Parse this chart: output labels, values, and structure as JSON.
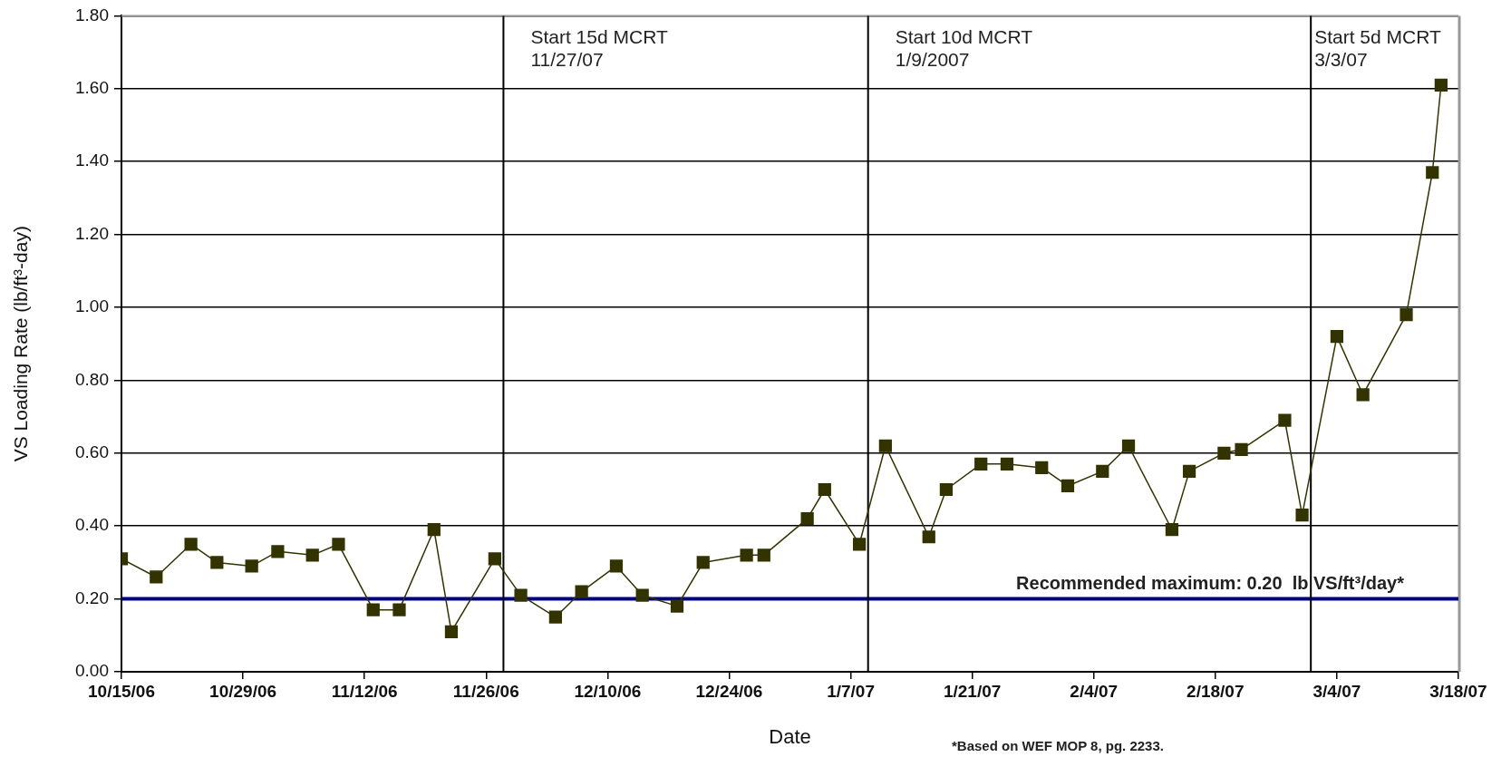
{
  "chart_data": {
    "type": "line",
    "xlabel": "Date",
    "ylabel": "VS Loading Rate (lb/ft³-day)",
    "series": [
      {
        "color": "#333300",
        "x": [
          "2006-10-15",
          "2006-10-19",
          "2006-10-23",
          "2006-10-26",
          "2006-10-30",
          "2006-11-02",
          "2006-11-06",
          "2006-11-09",
          "2006-11-13",
          "2006-11-16",
          "2006-11-20",
          "2006-11-22",
          "2006-11-27",
          "2006-11-30",
          "2006-12-04",
          "2006-12-07",
          "2006-12-11",
          "2006-12-14",
          "2006-12-18",
          "2006-12-21",
          "2006-12-26",
          "2006-12-28",
          "2007-01-02",
          "2007-01-04",
          "2007-01-08",
          "2007-01-11",
          "2007-01-16",
          "2007-01-18",
          "2007-01-22",
          "2007-01-25",
          "2007-01-29",
          "2007-02-01",
          "2007-02-05",
          "2007-02-08",
          "2007-02-13",
          "2007-02-15",
          "2007-02-19",
          "2007-02-21",
          "2007-02-26",
          "2007-02-28",
          "2007-03-04",
          "2007-03-07",
          "2007-03-12",
          "2007-03-15",
          "2007-03-16"
        ],
        "values": [
          0.31,
          0.26,
          0.35,
          0.3,
          0.29,
          0.33,
          0.32,
          0.35,
          0.17,
          0.17,
          0.39,
          0.11,
          0.31,
          0.21,
          0.15,
          0.22,
          0.29,
          0.21,
          0.18,
          0.3,
          0.32,
          0.32,
          0.42,
          0.5,
          0.35,
          0.62,
          0.37,
          0.5,
          0.57,
          0.57,
          0.56,
          0.51,
          0.55,
          0.62,
          0.39,
          0.55,
          0.6,
          0.61,
          0.69,
          0.43,
          0.92,
          0.76,
          0.98,
          1.37,
          1.61
        ]
      }
    ],
    "xlim": [
      "2006-10-15",
      "2007-03-18"
    ],
    "xticks": [
      {
        "value": "2006-10-15",
        "label": "10/15/06"
      },
      {
        "value": "2006-10-29",
        "label": "10/29/06"
      },
      {
        "value": "2006-11-12",
        "label": "11/12/06"
      },
      {
        "value": "2006-11-26",
        "label": "11/26/06"
      },
      {
        "value": "2006-12-10",
        "label": "12/10/06"
      },
      {
        "value": "2006-12-24",
        "label": "12/24/06"
      },
      {
        "value": "2007-01-07",
        "label": "1/7/07"
      },
      {
        "value": "2007-01-21",
        "label": "1/21/07"
      },
      {
        "value": "2007-02-04",
        "label": "2/4/07"
      },
      {
        "value": "2007-02-18",
        "label": "2/18/07"
      },
      {
        "value": "2007-03-04",
        "label": "3/4/07"
      },
      {
        "value": "2007-03-18",
        "label": "3/18/07"
      }
    ],
    "ylim": [
      0,
      1.8
    ],
    "yticks": [
      {
        "value": 0,
        "label": "0.00"
      },
      {
        "value": 0.2,
        "label": "0.20"
      },
      {
        "value": 0.4,
        "label": "0.40"
      },
      {
        "value": 0.6,
        "label": "0.60"
      },
      {
        "value": 0.8,
        "label": "0.80"
      },
      {
        "value": 1.0,
        "label": "1.00"
      },
      {
        "value": 1.2,
        "label": "1.20"
      },
      {
        "value": 1.4,
        "label": "1.40"
      },
      {
        "value": 1.6,
        "label": "1.60"
      },
      {
        "value": 1.8,
        "label": "1.80"
      }
    ],
    "grid": "y",
    "marker": "square",
    "line_style": "solid",
    "legend": false,
    "ref_lines": [
      {
        "axis": "y",
        "value": 0.2,
        "label": "Recommended maximum: 0.20  lb VS/ft³/day*",
        "color": "#000080"
      },
      {
        "axis": "x",
        "value": "2006-11-28",
        "label": "Start 15d MCRT\n11/27/07",
        "color": "#000000"
      },
      {
        "axis": "x",
        "value": "2007-01-09",
        "label": "Start 10d MCRT\n1/9/2007",
        "color": "#000000"
      },
      {
        "axis": "x",
        "value": "2007-03-01",
        "label": "Start 5d MCRT\n3/3/07",
        "color": "#000000"
      }
    ],
    "annotations": [
      "*Based on WEF MOP 8, pg. 2233."
    ]
  }
}
